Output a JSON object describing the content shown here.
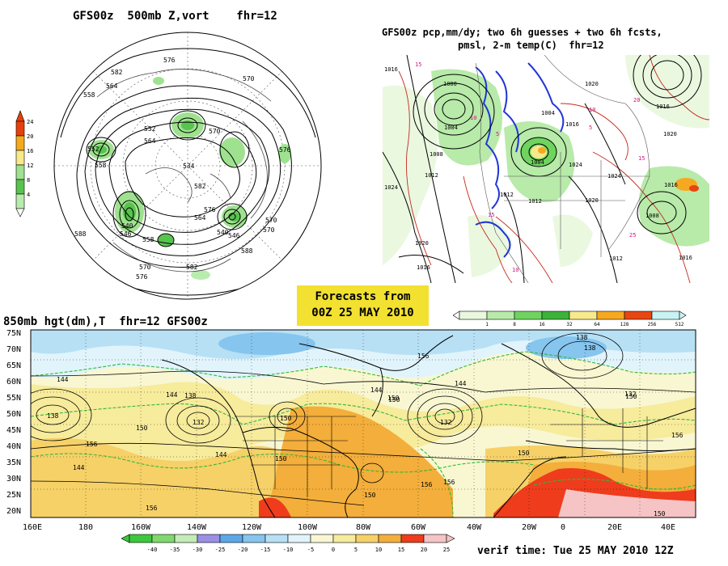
{
  "panels": {
    "vort500": {
      "title": "GFS00z  500mb Z,vort    fhr=12",
      "colorbar_ticks": [
        "24",
        "20",
        "16",
        "12",
        "8",
        "4"
      ],
      "colorbar_colors": [
        "#e8400a",
        "#f7a91b",
        "#f7e98c",
        "#9ee28f",
        "#58c34e",
        "#b8ecae"
      ],
      "contour_labels": [
        "576",
        "582",
        "564",
        "558",
        "552",
        "558",
        "552",
        "570",
        "564",
        "570",
        "540",
        "546",
        "534",
        "540",
        "546",
        "558",
        "564",
        "570",
        "576",
        "588",
        "570",
        "576",
        "582",
        "588",
        "570",
        "582",
        "576"
      ]
    },
    "precip": {
      "title_line1": "GFS00z pcp,mm/dy; two 6h guesses + two 6h fcsts,",
      "title_line2": "pmsl, 2-m temp(C)  fhr=12",
      "pressure_labels": [
        "1016",
        "1000",
        "1004",
        "1008",
        "1012",
        "1020",
        "1004",
        "1024",
        "1016",
        "1020",
        "1012",
        "1020",
        "1008",
        "1024",
        "1016",
        "1016",
        "1012",
        "1016",
        "1004",
        "1016",
        "1020",
        "1024",
        "1012"
      ],
      "temp_labels": [
        "15",
        "10",
        "5",
        "15",
        "10",
        "5",
        "25",
        "20",
        "15",
        "10"
      ],
      "colorbar_labels": [
        "1",
        "8",
        "16",
        "32",
        "64",
        "128",
        "256",
        "512"
      ],
      "colorbar_colors": [
        "#eaf8e0",
        "#b8eaa9",
        "#6fd45f",
        "#3cb23a",
        "#f7e98c",
        "#f6a821",
        "#e84611",
        "#c9f3f2"
      ]
    },
    "hgt850": {
      "title": "850mb hgt(dm),T  fhr=12 GFS00z",
      "lat_labels": [
        "75N",
        "70N",
        "65N",
        "60N",
        "55N",
        "50N",
        "45N",
        "40N",
        "35N",
        "30N",
        "25N",
        "20N"
      ],
      "lon_labels": [
        "160E",
        "180",
        "160W",
        "140W",
        "120W",
        "100W",
        "80W",
        "60W",
        "40W",
        "20W",
        "0",
        "20E",
        "40E"
      ],
      "height_labels": [
        "144",
        "138",
        "150",
        "156",
        "144",
        "138",
        "132",
        "144",
        "150",
        "150",
        "156",
        "150",
        "144",
        "150",
        "144",
        "132",
        "138",
        "150",
        "156",
        "150",
        "156",
        "144",
        "132",
        "138",
        "150",
        "156",
        "150",
        "156"
      ],
      "colorbar_labels": [
        "-40",
        "-35",
        "-30",
        "-25",
        "-20",
        "-15",
        "-10",
        "-5",
        "0",
        "5",
        "10",
        "15",
        "20",
        "25"
      ],
      "colorbar_colors": [
        "#3cc83c",
        "#7fd96d",
        "#c4ecb6",
        "#9b8fe6",
        "#5aa8e8",
        "#86c5ee",
        "#b7e0f5",
        "#e1f4fb",
        "#f9f7d2",
        "#f7eb9c",
        "#f6d168",
        "#f3ae3b",
        "#ee3c1d",
        "#f6c4c4"
      ]
    },
    "forecasts_from": {
      "line1": "Forecasts from",
      "line2": "00Z 25 MAY 2010"
    },
    "verif_time": "verif time: Tue 25 MAY 2010 12Z"
  }
}
